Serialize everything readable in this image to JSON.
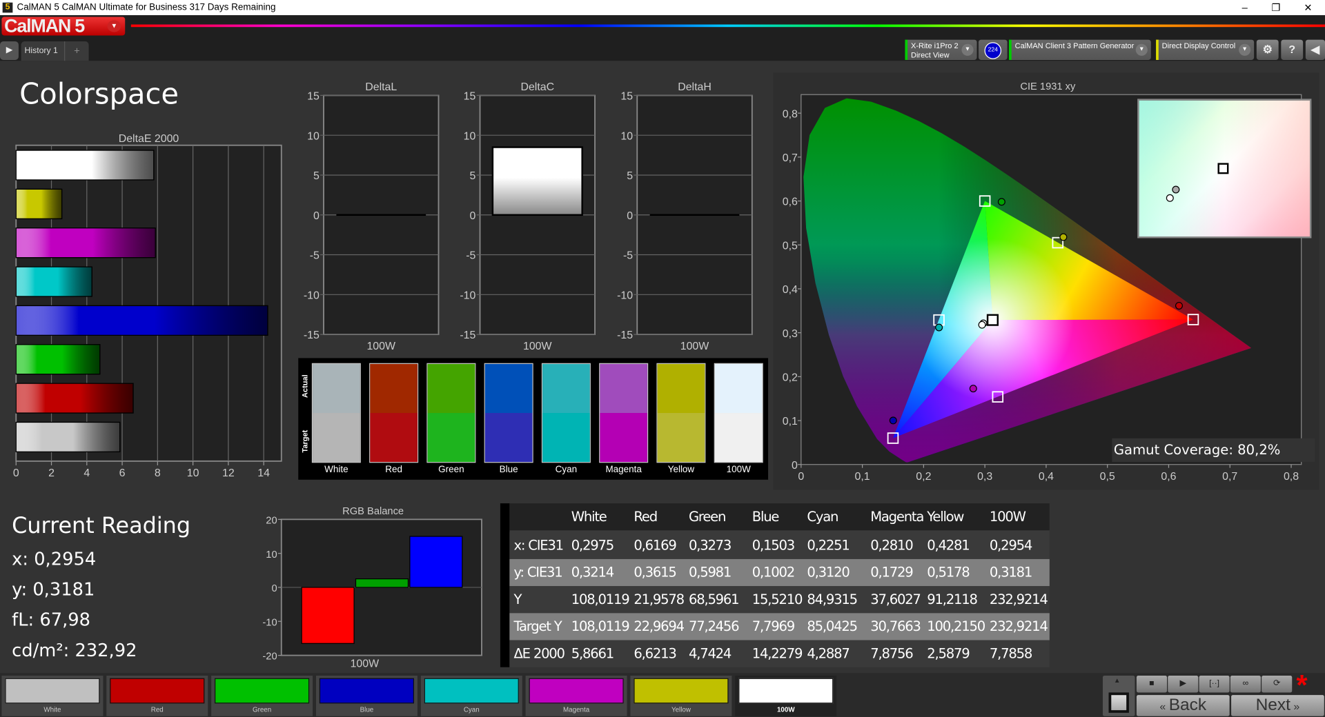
{
  "window": {
    "title": "CalMAN 5 CalMAN Ultimate for Business 317 Days Remaining",
    "icon": "5",
    "controls": [
      "minimize",
      "restore",
      "close"
    ]
  },
  "app": {
    "logo": "CalMAN 5",
    "tab": "History 1",
    "add_tab": "+"
  },
  "toolbar": {
    "meter": {
      "line1": "X-Rite i1Pro 2",
      "line2": "Direct View",
      "status_color": "#00cc00"
    },
    "meter_badge": "224",
    "pattern": {
      "label": "CalMAN Client 3 Pattern Generator",
      "status_color": "#00cc00"
    },
    "display": {
      "label": "Direct Display Control",
      "status_color": "#e0e000"
    },
    "icons": [
      "gear-icon",
      "help-icon",
      "collapse-icon"
    ],
    "help_label": "?"
  },
  "page_title": "Colorspace",
  "swatches": {
    "actual_label": "Actual",
    "target_label": "Target",
    "items": [
      {
        "name": "White",
        "actual": "#a9b4b8",
        "target": "#b5b5b5"
      },
      {
        "name": "Red",
        "actual": "#a02800",
        "target": "#b00c10"
      },
      {
        "name": "Green",
        "actual": "#44a400",
        "target": "#1eb41e"
      },
      {
        "name": "Blue",
        "actual": "#0050b8",
        "target": "#2e2eb4"
      },
      {
        "name": "Cyan",
        "actual": "#28b0b8",
        "target": "#00b4b4"
      },
      {
        "name": "Magenta",
        "actual": "#a04cbc",
        "target": "#b400b4"
      },
      {
        "name": "Yellow",
        "actual": "#b0b000",
        "target": "#b8b830"
      },
      {
        "name": "100W",
        "actual": "#e4f2fc",
        "target": "#f0f0f0"
      }
    ]
  },
  "current_reading": {
    "title": "Current Reading",
    "x": "x: 0,2954",
    "y": "y: 0,3181",
    "fl": "fL: 67,98",
    "cdm2": "cd/m²: 232,92"
  },
  "table": {
    "headers": [
      "",
      "White",
      "Red",
      "Green",
      "Blue",
      "Cyan",
      "Magenta",
      "Yellow",
      "100W"
    ],
    "rows": [
      [
        "x: CIE31",
        "0,2975",
        "0,6169",
        "0,3273",
        "0,1503",
        "0,2251",
        "0,2810",
        "0,4281",
        "0,2954"
      ],
      [
        "y: CIE31",
        "0,3214",
        "0,3615",
        "0,5981",
        "0,1002",
        "0,3120",
        "0,1729",
        "0,5178",
        "0,3181"
      ],
      [
        "Y",
        "108,0119",
        "21,9578",
        "68,5961",
        "15,5210",
        "84,9315",
        "37,6027",
        "91,2118",
        "232,9214"
      ],
      [
        "Target Y",
        "108,0119",
        "22,9694",
        "77,2456",
        "7,7969",
        "85,0425",
        "30,7663",
        "100,2150",
        "232,9214"
      ],
      [
        "ΔE 2000",
        "5,8661",
        "6,6213",
        "4,7424",
        "14,2279",
        "4,2887",
        "7,8756",
        "2,5879",
        "7,7858"
      ]
    ]
  },
  "gamut_coverage": "Gamut Coverage:  80,2%",
  "bottom_swatches": [
    {
      "name": "White",
      "color": "#c0c0c0"
    },
    {
      "name": "Red",
      "color": "#c00000"
    },
    {
      "name": "Green",
      "color": "#00c000"
    },
    {
      "name": "Blue",
      "color": "#0000c0"
    },
    {
      "name": "Cyan",
      "color": "#00c0c0"
    },
    {
      "name": "Magenta",
      "color": "#c000c0"
    },
    {
      "name": "Yellow",
      "color": "#c0c000"
    },
    {
      "name": "100W",
      "color": "#ffffff",
      "selected": true
    }
  ],
  "controls": {
    "back": "Back",
    "next": "Next",
    "icons": [
      "stop-icon",
      "play-icon",
      "read-series-icon",
      "continuous-icon",
      "refresh-icon"
    ]
  },
  "chart_data": [
    {
      "id": "deltae",
      "type": "bar",
      "orientation": "horizontal",
      "title": "DeltaE 2000",
      "categories": [
        "100W",
        "Yellow",
        "Magenta",
        "Cyan",
        "Blue",
        "Green",
        "Red",
        "White"
      ],
      "values": [
        7.7858,
        2.5879,
        7.8756,
        4.2887,
        14.2279,
        4.7424,
        6.6213,
        5.8661
      ],
      "colors": [
        "#ffffff",
        "#c8c800",
        "#c000c0",
        "#00c8c8",
        "#0000cc",
        "#00c000",
        "#c00000",
        "#c8c8c8"
      ],
      "xlim": [
        0,
        15
      ],
      "xticks": [
        0,
        2,
        4,
        6,
        8,
        10,
        12,
        14
      ],
      "grid": true
    },
    {
      "id": "deltal",
      "type": "bar",
      "title": "DeltaL",
      "categories": [
        "100W"
      ],
      "values": [
        0
      ],
      "ylim": [
        -15,
        15
      ],
      "yticks": [
        15,
        10,
        5,
        0,
        -5,
        -10,
        -15
      ]
    },
    {
      "id": "deltac",
      "type": "bar",
      "title": "DeltaC",
      "categories": [
        "100W"
      ],
      "values": [
        8.5
      ],
      "ylim": [
        -15,
        15
      ],
      "yticks": [
        15,
        10,
        5,
        0,
        -5,
        -10,
        -15
      ]
    },
    {
      "id": "deltah",
      "type": "bar",
      "title": "DeltaH",
      "categories": [
        "100W"
      ],
      "values": [
        0
      ],
      "ylim": [
        -15,
        15
      ],
      "yticks": [
        15,
        10,
        5,
        0,
        -5,
        -10,
        -15
      ]
    },
    {
      "id": "rgb",
      "type": "bar",
      "title": "RGB Balance",
      "xlabel": "100W",
      "series": [
        {
          "color": "#ff0000",
          "values": [
            -16.5
          ]
        },
        {
          "color": "#00a000",
          "values": [
            2.5
          ]
        },
        {
          "color": "#0000ff",
          "values": [
            15
          ]
        }
      ],
      "ylim": [
        -20,
        20
      ],
      "yticks": [
        20,
        10,
        0,
        -10,
        -20
      ]
    },
    {
      "id": "cie",
      "type": "scatter",
      "title": "CIE 1931 xy",
      "xlim": [
        0,
        0.8
      ],
      "ylim": [
        0,
        0.85
      ],
      "xticks": [
        0,
        0.1,
        0.2,
        0.3,
        0.4,
        0.5,
        0.6,
        0.7,
        0.8
      ],
      "yticks": [
        0,
        0.1,
        0.2,
        0.3,
        0.4,
        0.5,
        0.6,
        0.7,
        0.8
      ],
      "targets": [
        {
          "name": "Red",
          "x": 0.64,
          "y": 0.33
        },
        {
          "name": "Green",
          "x": 0.3,
          "y": 0.6
        },
        {
          "name": "Blue",
          "x": 0.15,
          "y": 0.06
        },
        {
          "name": "Cyan",
          "x": 0.225,
          "y": 0.329
        },
        {
          "name": "Magenta",
          "x": 0.321,
          "y": 0.154
        },
        {
          "name": "Yellow",
          "x": 0.419,
          "y": 0.505
        },
        {
          "name": "White",
          "x": 0.3127,
          "y": 0.329
        }
      ],
      "measured": [
        {
          "name": "White",
          "x": 0.2975,
          "y": 0.3214,
          "color": "#ffffff"
        },
        {
          "name": "Red",
          "x": 0.6169,
          "y": 0.3615,
          "color": "#c00000"
        },
        {
          "name": "Green",
          "x": 0.3273,
          "y": 0.5981,
          "color": "#00a000"
        },
        {
          "name": "Blue",
          "x": 0.1503,
          "y": 0.1002,
          "color": "#0000b0"
        },
        {
          "name": "Cyan",
          "x": 0.2251,
          "y": 0.312,
          "color": "#00b0b0"
        },
        {
          "name": "Magenta",
          "x": 0.281,
          "y": 0.1729,
          "color": "#b000b0"
        },
        {
          "name": "Yellow",
          "x": 0.4281,
          "y": 0.5178,
          "color": "#b0b000"
        },
        {
          "name": "100W",
          "x": 0.2954,
          "y": 0.3181,
          "color": "#ffffff"
        }
      ]
    }
  ]
}
